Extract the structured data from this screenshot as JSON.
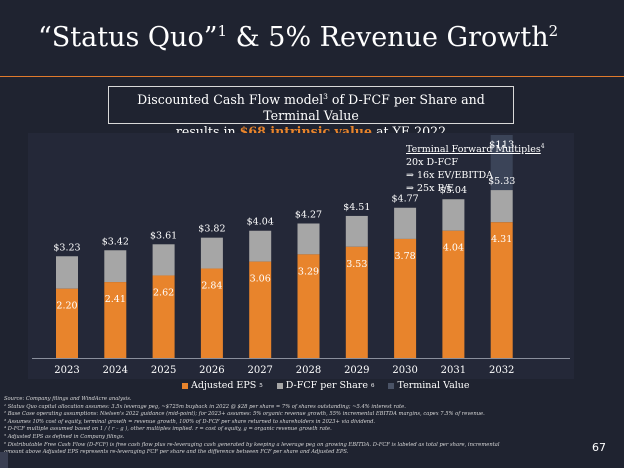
{
  "slide": {
    "title_main": "“Status Quo”",
    "title_sup1": "1",
    "title_rest": " & 5% Revenue Growth",
    "title_sup2": "2",
    "subtitle_line1_a": "Discounted Cash Flow model",
    "subtitle_line1_sup": "3",
    "subtitle_line1_b": " of D-FCF per Share and Terminal Value",
    "subtitle_line2_a": "results in ",
    "subtitle_line2_highlight": "$68 intrinsic value",
    "subtitle_line2_b": " at YE 2022",
    "page_number": "67",
    "colors": {
      "background": "#1f2330",
      "accent": "#e8842c",
      "gray": "#a6a6a6",
      "terminal": "#4a5366"
    }
  },
  "note": {
    "heading": "Terminal Forward Multiples",
    "heading_sup": "4",
    "line1": "20x D-FCF",
    "line2": "⇒ 16x EV/EBITDA",
    "line3": "⇒ 25x P/E"
  },
  "legend": {
    "adjusted_eps": "Adjusted EPS",
    "adjusted_eps_sup": "5",
    "dfcf": "D-FCF per Share",
    "dfcf_sup": "6",
    "terminal": "Terminal Value"
  },
  "chart_data": {
    "type": "bar",
    "stacked": true,
    "categories": [
      "2023",
      "2024",
      "2025",
      "2026",
      "2027",
      "2028",
      "2029",
      "2030",
      "2031",
      "2032"
    ],
    "series": [
      {
        "name": "Adjusted EPS",
        "values": [
          2.2,
          2.41,
          2.62,
          2.84,
          3.06,
          3.29,
          3.53,
          3.78,
          4.04,
          4.31
        ],
        "color": "#e8842c"
      },
      {
        "name": "D-FCF per Share",
        "values": [
          3.23,
          3.42,
          3.61,
          3.82,
          4.04,
          4.27,
          4.51,
          4.77,
          5.04,
          5.33
        ],
        "color": "#a6a6a6"
      }
    ],
    "eps_labels": [
      "2.20",
      "2.41",
      "2.62",
      "2.84",
      "3.06",
      "3.29",
      "3.53",
      "3.78",
      "4.04",
      "4.31"
    ],
    "dfcf_labels": [
      "$3.23",
      "$3.42",
      "$3.61",
      "$3.82",
      "$4.04",
      "$4.27",
      "$4.51",
      "$4.77",
      "$5.04",
      "$5.33"
    ],
    "terminal_value": {
      "category": "2032",
      "label": "$113",
      "value": 113
    }
  },
  "footnotes": [
    "Source: Company filings and WindAcre analysis.",
    "¹ Status Quo capital allocation assumes: 3.5x leverage peg, ~$725m buyback in 2022 @ $28 per share = 7% of shares outstanding; ~5.4% interest rate.",
    "² Base Case operating assumptions: Nielsen's 2022 guidance (mid-point); for 2023+ assumes: 5% organic revenue growth, 55% incremental EBITDA margins, capex 7.5% of revenue.",
    "³ Assumes 10% cost of equity, terminal growth = revenue growth, 100% of D-FCF per share returned to shareholders in 2023+ via dividend.",
    "⁴ D-FCF multiple assumed based on 1 / ( r – g ), other multiples implied.  r = cost of equity, g = organic revenue growth rate.",
    "⁵ Adjusted EPS as defined in Company filings.",
    "⁶ Distributable Free Cash Flow (D-FCF) is free cash flow plus re-leveraging cash generated by keeping a leverage peg on growing EBITDA.  D-FCF is labeled as total per share, incremental",
    "amount above Adjusted EPS represents re-leveraging FCF per share and the difference between FCF per share and Adjusted EPS."
  ]
}
